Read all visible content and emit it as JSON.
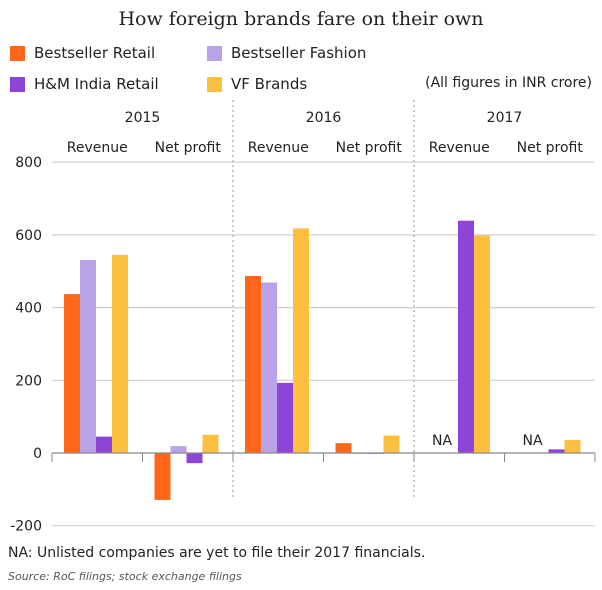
{
  "chart_data": {
    "type": "bar",
    "title": "How foreign brands fare on their own",
    "unit_note": "(All figures in INR crore)",
    "years": [
      "2015",
      "2016",
      "2017"
    ],
    "categories": [
      "Revenue",
      "Net profit",
      "Revenue",
      "Net profit",
      "Revenue",
      "Net profit"
    ],
    "series": [
      {
        "name": "Bestseller Retail",
        "color": "#ff6619",
        "values": [
          437,
          -129,
          487,
          27,
          null,
          null
        ]
      },
      {
        "name": "Bestseller Fashion",
        "color": "#b9a3e8",
        "values": [
          531,
          19,
          469,
          -2,
          null,
          null
        ]
      },
      {
        "name": "H&M India Retail",
        "color": "#8e44d6",
        "values": [
          45,
          -28,
          193,
          -1,
          639,
          10
        ]
      },
      {
        "name": "VF Brands",
        "color": "#fdbf3f",
        "values": [
          545,
          50,
          618,
          48,
          598,
          36
        ]
      }
    ],
    "na_label": "NA",
    "yticks": [
      "800",
      "600",
      "400",
      "200",
      "0",
      "-200"
    ],
    "ylim": [
      -200,
      800
    ],
    "grid": true,
    "legend": "top-left",
    "footnote": "NA: Unlisted companies are yet to file their 2017 financials.",
    "source": "Source: RoC filings; stock exchange filings"
  }
}
